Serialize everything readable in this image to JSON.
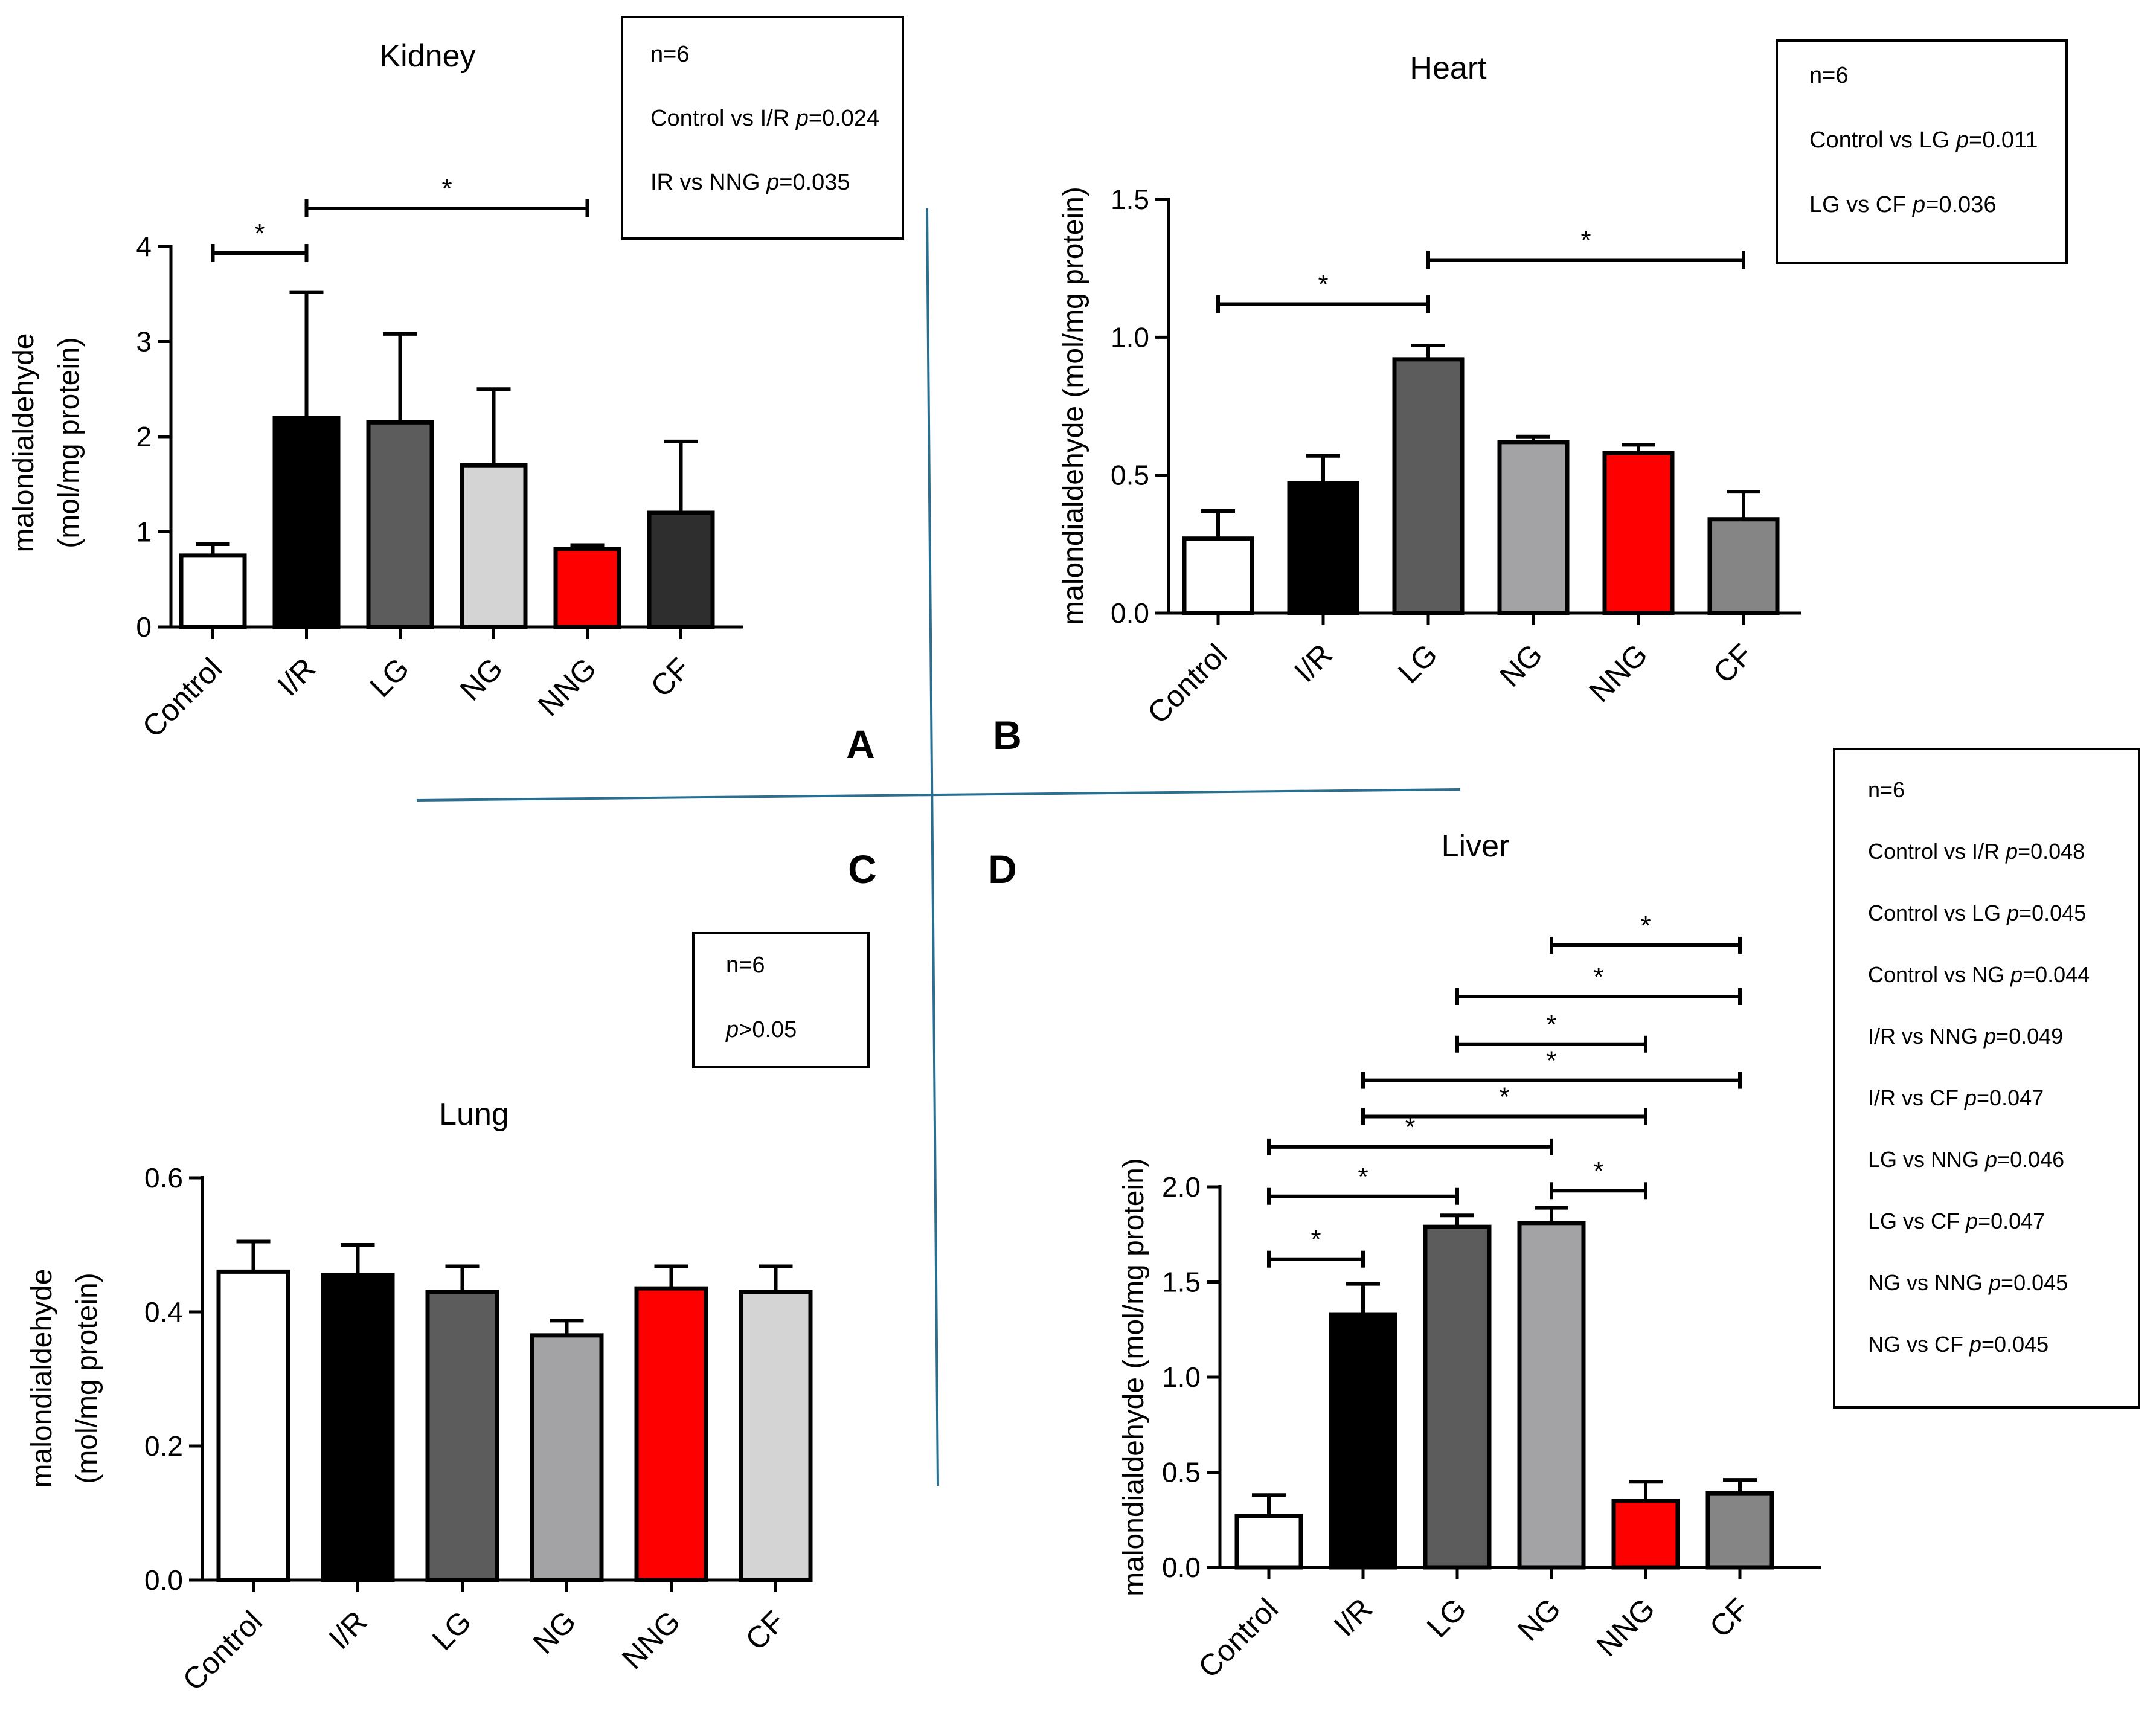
{
  "panel_letters": [
    "A",
    "B",
    "C",
    "D"
  ],
  "colors": {
    "white": "#ffffff",
    "black": "#000000",
    "dark_gray": "#5c5c5c",
    "light_gray": "#d4d4d4",
    "mid_gray": "#a3a3a6",
    "red": "#ff0000",
    "charcoal": "#2e2e2e",
    "gray": "#858585",
    "divider": "#2a6f8f"
  },
  "chart_data": [
    {
      "id": "kidney",
      "type": "bar",
      "title": "Kidney",
      "ylabel_lines": [
        "malondialdehyde",
        "(mol/mg protein)"
      ],
      "ylim": [
        0,
        4
      ],
      "ticks": [
        0,
        1,
        2,
        3,
        4
      ],
      "tick_labels": [
        "0",
        "1",
        "2",
        "3",
        "4"
      ],
      "categories": [
        "Control",
        "I/R",
        "LG",
        "NG",
        "NNG",
        "CF"
      ],
      "values": [
        0.75,
        2.2,
        2.15,
        1.7,
        0.82,
        1.2
      ],
      "errors": [
        0.12,
        1.32,
        0.93,
        0.8,
        0.04,
        0.75
      ],
      "bar_colors": [
        "white",
        "black",
        "dark_gray",
        "light_gray",
        "red",
        "charcoal"
      ],
      "significance": [
        {
          "from": 0,
          "to": 1,
          "label": "*",
          "y": 3.93
        },
        {
          "from": 1,
          "to": 4,
          "label": "*",
          "y": 4.4
        }
      ],
      "legend": {
        "lines": [
          {
            "text": "n=6"
          },
          {
            "prefix": "Control vs I/R ",
            "p": "p",
            "suffix": "=0.024"
          },
          {
            "prefix": "IR vs NNG ",
            "p": "p",
            "suffix": "=0.035"
          }
        ]
      }
    },
    {
      "id": "heart",
      "type": "bar",
      "title": "Heart",
      "ylabel_lines": [
        "malondialdehyde (mol/mg protein)"
      ],
      "ylim": [
        0,
        1.5
      ],
      "ticks": [
        0,
        0.5,
        1.0,
        1.5
      ],
      "tick_labels": [
        "0.0",
        "0.5",
        "1.0",
        "1.5"
      ],
      "categories": [
        "Control",
        "I/R",
        "LG",
        "NG",
        "NNG",
        "CF"
      ],
      "values": [
        0.27,
        0.47,
        0.92,
        0.62,
        0.58,
        0.34
      ],
      "errors": [
        0.1,
        0.1,
        0.05,
        0.02,
        0.03,
        0.1
      ],
      "bar_colors": [
        "white",
        "black",
        "dark_gray",
        "mid_gray",
        "red",
        "gray"
      ],
      "significance": [
        {
          "from": 0,
          "to": 2,
          "label": "*",
          "y": 1.12
        },
        {
          "from": 2,
          "to": 5,
          "label": "*",
          "y": 1.28
        }
      ],
      "legend": {
        "lines": [
          {
            "text": "n=6"
          },
          {
            "prefix": "Control vs LG ",
            "p": "p",
            "suffix": "=0.011"
          },
          {
            "prefix": "LG vs CF ",
            "p": "p",
            "suffix": "=0.036"
          }
        ]
      }
    },
    {
      "id": "lung",
      "type": "bar",
      "title": "Lung",
      "ylabel_lines": [
        "malondialdehyde",
        "(mol/mg protein)"
      ],
      "ylim": [
        0,
        0.6
      ],
      "ticks": [
        0,
        0.2,
        0.4,
        0.6
      ],
      "tick_labels": [
        "0.0",
        "0.2",
        "0.4",
        "0.6"
      ],
      "categories": [
        "Control",
        "I/R",
        "LG",
        "NG",
        "NNG",
        "CF"
      ],
      "values": [
        0.46,
        0.455,
        0.43,
        0.365,
        0.435,
        0.43
      ],
      "errors": [
        0.045,
        0.045,
        0.038,
        0.022,
        0.033,
        0.038
      ],
      "bar_colors": [
        "white",
        "black",
        "dark_gray",
        "mid_gray",
        "red",
        "light_gray"
      ],
      "significance": [],
      "legend": {
        "lines": [
          {
            "text": "n=6"
          },
          {
            "prefix": "",
            "p": "p",
            "suffix": ">0.05"
          }
        ]
      }
    },
    {
      "id": "liver",
      "type": "bar",
      "title": "Liver",
      "ylabel_lines": [
        "malondialdehyde (mol/mg protein)"
      ],
      "ylim": [
        0,
        2.0
      ],
      "ticks": [
        0,
        0.5,
        1.0,
        1.5,
        2.0
      ],
      "tick_labels": [
        "0.0",
        "0.5",
        "1.0",
        "1.5",
        "2.0"
      ],
      "categories": [
        "Control",
        "I/R",
        "LG",
        "NG",
        "NNG",
        "CF"
      ],
      "values": [
        0.27,
        1.33,
        1.79,
        1.81,
        0.35,
        0.39
      ],
      "errors": [
        0.11,
        0.16,
        0.06,
        0.08,
        0.1,
        0.07
      ],
      "bar_colors": [
        "white",
        "black",
        "dark_gray",
        "mid_gray",
        "red",
        "gray"
      ],
      "significance": [
        {
          "from": 0,
          "to": 1,
          "label": "*",
          "y": 1.62
        },
        {
          "from": 0,
          "to": 2,
          "label": "*",
          "y": 1.95
        },
        {
          "from": 0,
          "to": 3,
          "label": "*",
          "y": 2.21
        },
        {
          "from": 1,
          "to": 4,
          "label": "*",
          "y": 2.37
        },
        {
          "from": 1,
          "to": 5,
          "label": "*",
          "y": 2.56
        },
        {
          "from": 2,
          "to": 4,
          "label": "*",
          "y": 2.75
        },
        {
          "from": 2,
          "to": 5,
          "label": "*",
          "y": 3.0
        },
        {
          "from": 3,
          "to": 5,
          "label": "*",
          "y": 3.27
        },
        {
          "from": 3,
          "to": 4,
          "label": "*",
          "y": 1.98
        }
      ],
      "legend": {
        "lines": [
          {
            "text": "n=6"
          },
          {
            "prefix": "Control vs I/R ",
            "p": "p",
            "suffix": "=0.048"
          },
          {
            "prefix": "Control vs LG ",
            "p": "p",
            "suffix": "=0.045"
          },
          {
            "prefix": "Control vs NG ",
            "p": "p",
            "suffix": "=0.044"
          },
          {
            "prefix": "I/R vs NNG ",
            "p": "p",
            "suffix": "=0.049"
          },
          {
            "prefix": "I/R vs CF ",
            "p": "p",
            "suffix": "=0.047"
          },
          {
            "prefix": "LG vs NNG ",
            "p": "p",
            "suffix": "=0.046"
          },
          {
            "prefix": "LG vs CF ",
            "p": "p",
            "suffix": "=0.047"
          },
          {
            "prefix": "NG vs NNG ",
            "p": "p",
            "suffix": "=0.045"
          },
          {
            "prefix": "NG vs CF ",
            "p": "p",
            "suffix": "=0.045"
          }
        ]
      }
    }
  ]
}
